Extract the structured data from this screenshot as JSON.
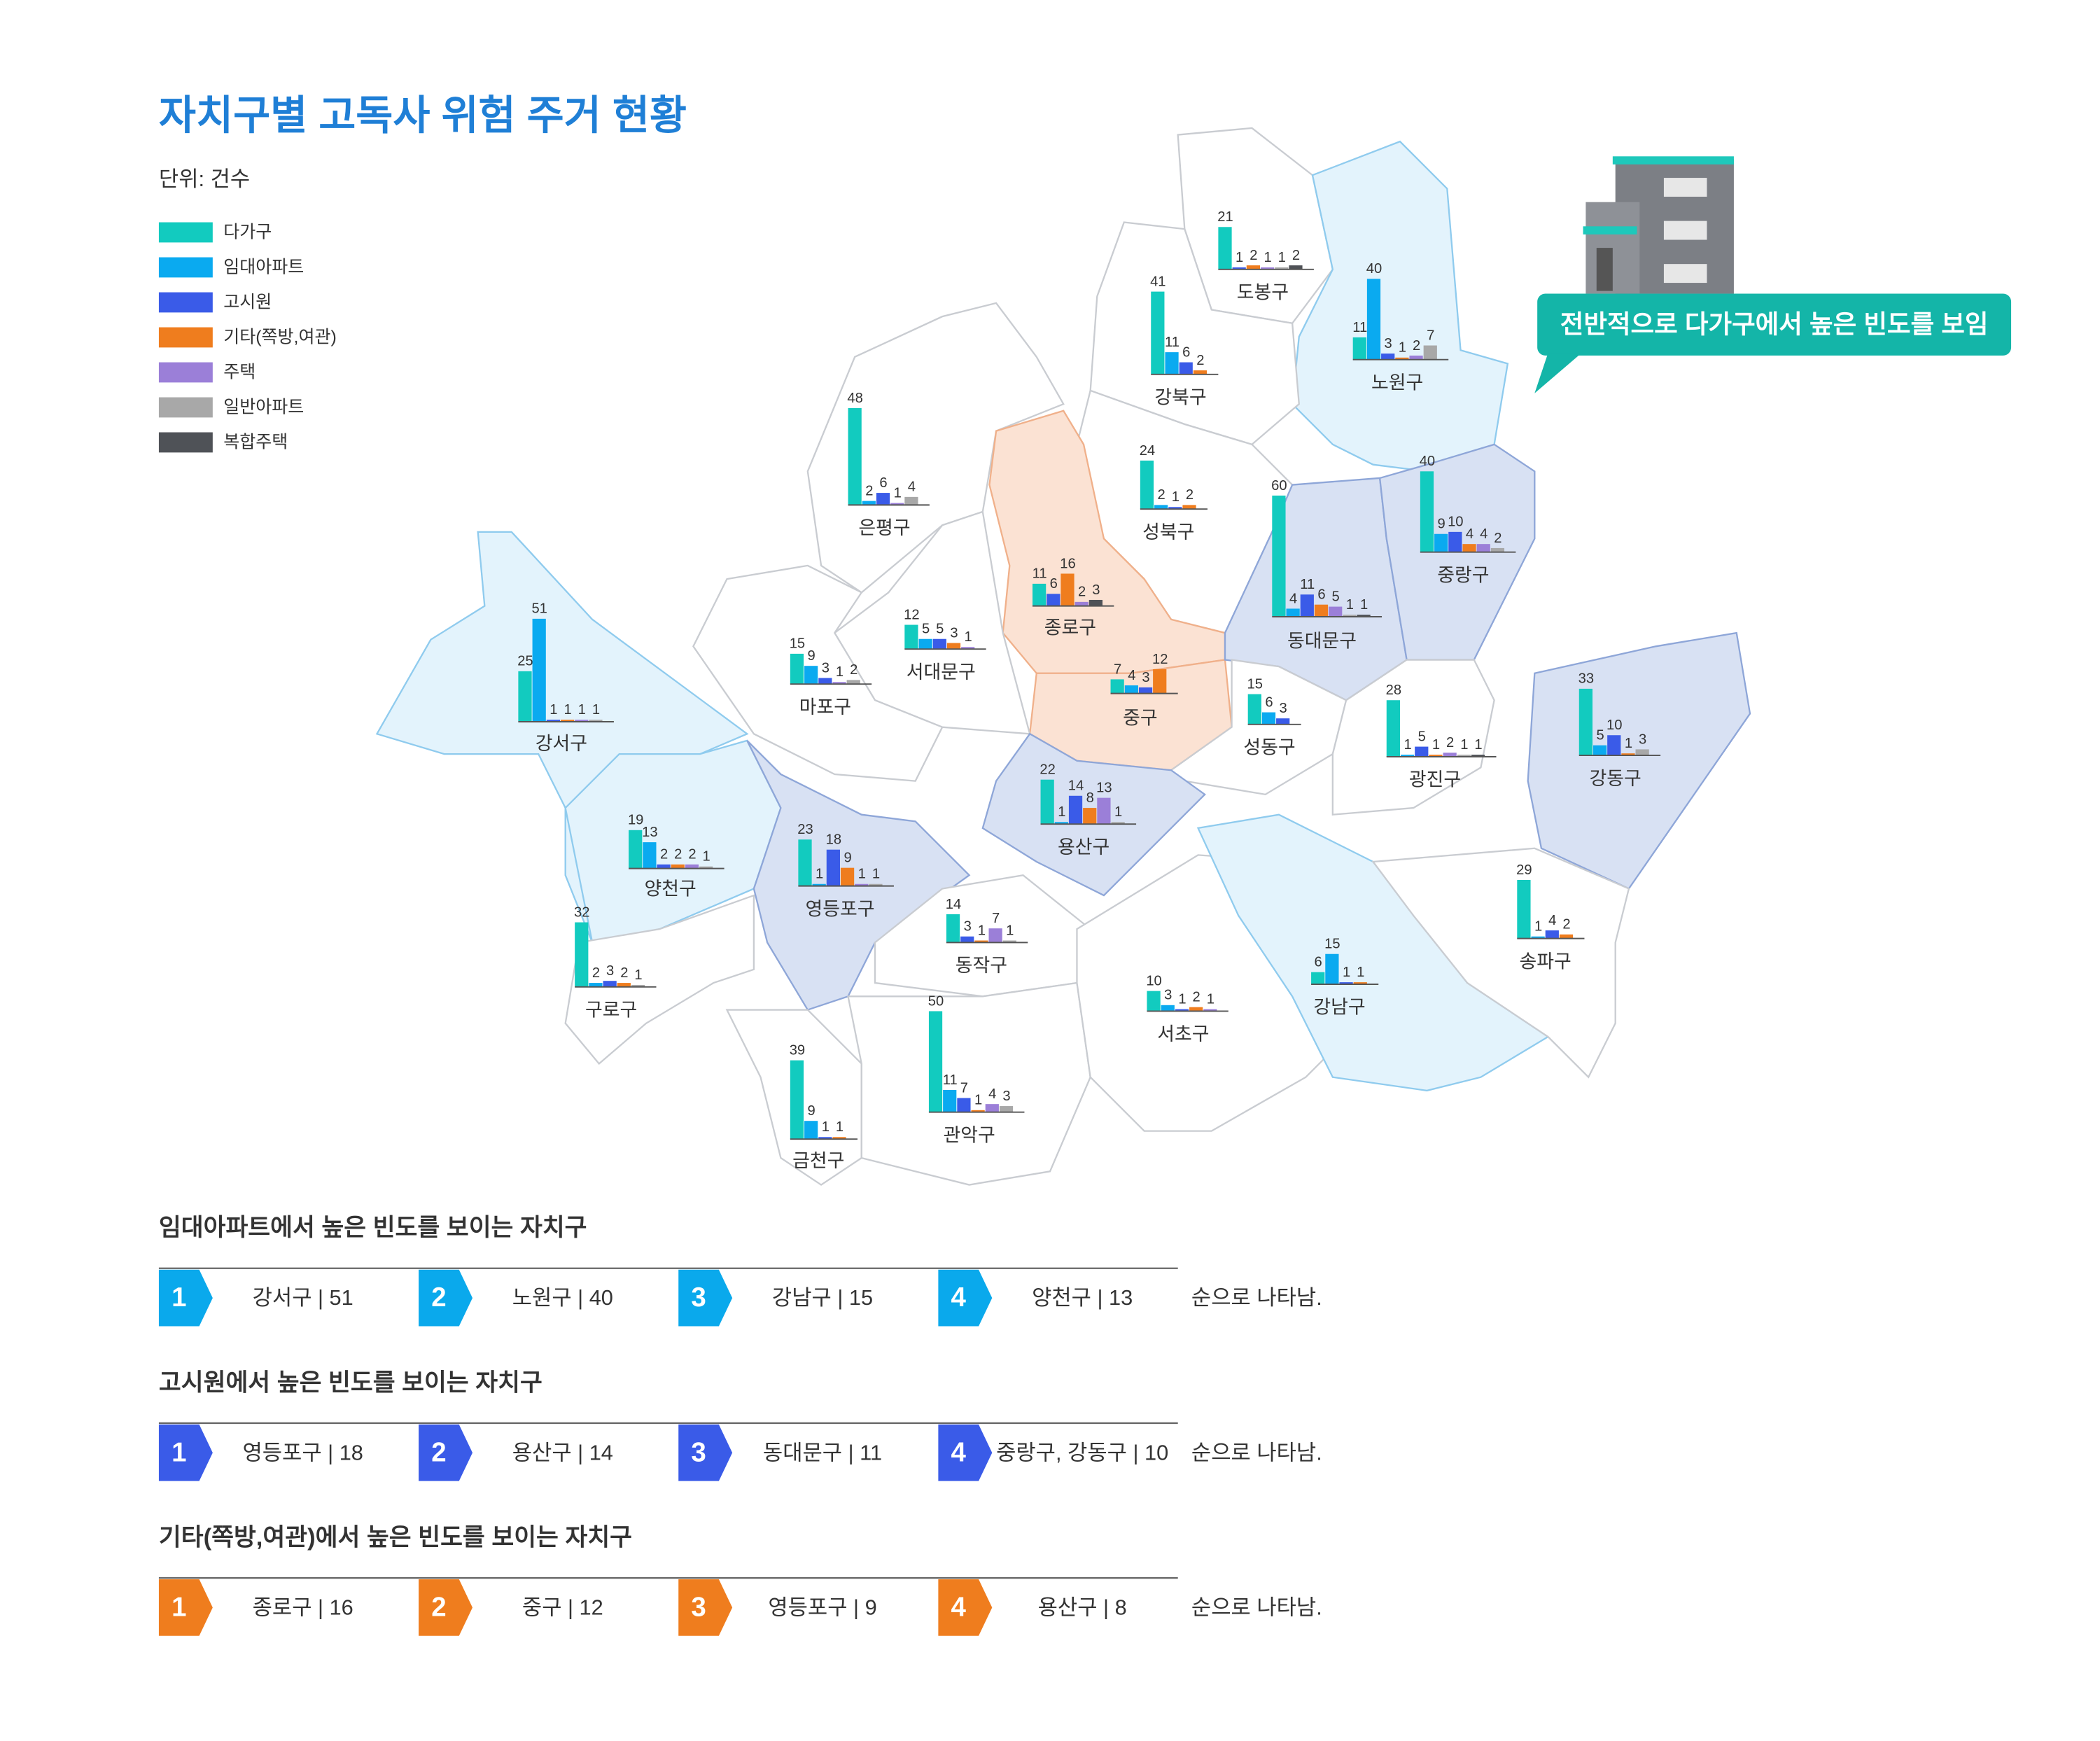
{
  "title": "자치구별 고독사 위험 주거 현황",
  "unit": "단위: 건수",
  "legend": [
    {
      "name": "다가구",
      "color": "#12cbbf"
    },
    {
      "name": "임대아파트",
      "color": "#0aaaf0"
    },
    {
      "name": "고시원",
      "color": "#3a5be8"
    },
    {
      "name": "기타(쪽방,여관)",
      "color": "#ef7d1e"
    },
    {
      "name": "주택",
      "color": "#9b7fd8"
    },
    {
      "name": "일반아파트",
      "color": "#a8a8a8"
    },
    {
      "name": "복합주택",
      "color": "#4f5257"
    }
  ],
  "districts": [
    {
      "name": "도봉구",
      "values": [
        21,
        null,
        1,
        2,
        1,
        1,
        2
      ]
    },
    {
      "name": "강북구",
      "values": [
        41,
        11,
        6,
        2,
        null,
        null,
        null
      ]
    },
    {
      "name": "노원구",
      "values": [
        11,
        40,
        3,
        1,
        2,
        7,
        null
      ]
    },
    {
      "name": "은평구",
      "values": [
        48,
        2,
        6,
        null,
        1,
        4,
        null
      ]
    },
    {
      "name": "성북구",
      "values": [
        24,
        2,
        1,
        2,
        null,
        null,
        null
      ]
    },
    {
      "name": "종로구",
      "values": [
        11,
        null,
        6,
        16,
        2,
        null,
        3
      ]
    },
    {
      "name": "서대문구",
      "values": [
        12,
        5,
        5,
        3,
        1,
        null,
        null
      ]
    },
    {
      "name": "마포구",
      "values": [
        15,
        9,
        3,
        null,
        1,
        2,
        null
      ]
    },
    {
      "name": "중구",
      "values": [
        7,
        4,
        3,
        12,
        null,
        null,
        null
      ]
    },
    {
      "name": "동대문구",
      "values": [
        60,
        4,
        11,
        6,
        5,
        1,
        1
      ]
    },
    {
      "name": "중랑구",
      "values": [
        40,
        9,
        10,
        4,
        4,
        2,
        null
      ]
    },
    {
      "name": "성동구",
      "values": [
        15,
        6,
        3,
        null,
        null,
        null,
        null
      ]
    },
    {
      "name": "광진구",
      "values": [
        28,
        1,
        5,
        1,
        2,
        1,
        1
      ]
    },
    {
      "name": "강동구",
      "values": [
        33,
        5,
        10,
        1,
        null,
        3,
        null
      ]
    },
    {
      "name": "강서구",
      "values": [
        25,
        51,
        1,
        1,
        1,
        1,
        null
      ]
    },
    {
      "name": "양천구",
      "values": [
        19,
        13,
        2,
        2,
        2,
        1,
        null
      ]
    },
    {
      "name": "영등포구",
      "values": [
        23,
        1,
        18,
        9,
        1,
        1,
        null
      ]
    },
    {
      "name": "용산구",
      "values": [
        22,
        1,
        14,
        8,
        13,
        1,
        null
      ]
    },
    {
      "name": "동작구",
      "values": [
        14,
        null,
        3,
        1,
        7,
        1,
        null
      ]
    },
    {
      "name": "구로구",
      "values": [
        32,
        2,
        3,
        2,
        null,
        1,
        null
      ]
    },
    {
      "name": "금천구",
      "values": [
        39,
        9,
        1,
        1,
        null,
        null,
        null
      ]
    },
    {
      "name": "관악구",
      "values": [
        50,
        11,
        7,
        1,
        4,
        3,
        null
      ]
    },
    {
      "name": "서초구",
      "values": [
        10,
        3,
        1,
        2,
        1,
        null,
        null
      ]
    },
    {
      "name": "강남구",
      "values": [
        6,
        15,
        1,
        1,
        null,
        null,
        null
      ]
    },
    {
      "name": "송파구",
      "values": [
        29,
        1,
        4,
        2,
        null,
        null,
        null
      ]
    }
  ],
  "callout": "전반적으로 다가구에서 높은 빈도를 보임",
  "rankings": [
    {
      "title": "임대아파트에서 높은 빈도를 보이는 자치구",
      "color": "#0aa9ec",
      "items": [
        {
          "rank": 1,
          "label": "강서구 | 51"
        },
        {
          "rank": 2,
          "label": "노원구 | 40"
        },
        {
          "rank": 3,
          "label": "강남구 | 15"
        },
        {
          "rank": 4,
          "label": "양천구 | 13"
        }
      ],
      "suffix": "순으로 나타남."
    },
    {
      "title": "고시원에서 높은 빈도를 보이는 자치구",
      "color": "#3a5be8",
      "items": [
        {
          "rank": 1,
          "label": "영등포구 | 18"
        },
        {
          "rank": 2,
          "label": "용산구 | 14"
        },
        {
          "rank": 3,
          "label": "동대문구 | 11"
        },
        {
          "rank": 4,
          "label": "중랑구, 강동구 | 10"
        }
      ],
      "suffix": "순으로 나타남."
    },
    {
      "title": "기타(쪽방,여관)에서 높은 빈도를 보이는 자치구",
      "color": "#ef7d1e",
      "items": [
        {
          "rank": 1,
          "label": "종로구 | 16"
        },
        {
          "rank": 2,
          "label": "중구 | 12"
        },
        {
          "rank": 3,
          "label": "영등포구 | 9"
        },
        {
          "rank": 4,
          "label": "용산구 | 8"
        }
      ],
      "suffix": "순으로 나타남."
    }
  ]
}
